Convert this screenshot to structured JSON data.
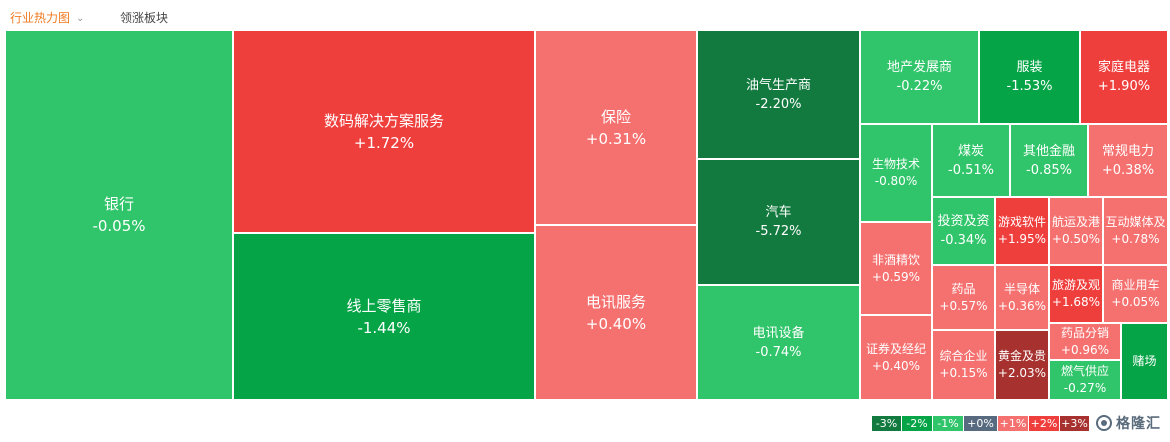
{
  "tabs": {
    "heatmap": "行业热力图",
    "leaders": "领涨板块"
  },
  "colors": {
    "up_strong": "#ef3f3d",
    "up_light": "#f57170",
    "down_light": "#30c56a",
    "down_mid": "#05a547",
    "down_strong": "#137a3f",
    "extreme_up": "#a6312e",
    "neutral": "#586a7f"
  },
  "tiles": [
    {
      "name": "银行",
      "pct": "-0.05%",
      "color": "#30c56a"
    },
    {
      "name": "数码解决方案服务",
      "pct": "+1.72%",
      "color": "#ef3f3d"
    },
    {
      "name": "线上零售商",
      "pct": "-1.44%",
      "color": "#05a547"
    },
    {
      "name": "保险",
      "pct": "+0.31%",
      "color": "#f57170"
    },
    {
      "name": "电讯服务",
      "pct": "+0.40%",
      "color": "#f57170"
    },
    {
      "name": "油气生产商",
      "pct": "-2.20%",
      "color": "#137a3f"
    },
    {
      "name": "汽车",
      "pct": "-5.72%",
      "color": "#137a3f"
    },
    {
      "name": "电讯设备",
      "pct": "-0.74%",
      "color": "#30c56a"
    },
    {
      "name": "地产发展商",
      "pct": "-0.22%",
      "color": "#30c56a"
    },
    {
      "name": "服装",
      "pct": "-1.53%",
      "color": "#05a547"
    },
    {
      "name": "家庭电器",
      "pct": "+1.90%",
      "color": "#ef3f3d"
    },
    {
      "name": "生物技术",
      "pct": "-0.80%",
      "color": "#30c56a"
    },
    {
      "name": "煤炭",
      "pct": "-0.51%",
      "color": "#30c56a"
    },
    {
      "name": "其他金融",
      "pct": "-0.85%",
      "color": "#30c56a"
    },
    {
      "name": "常规电力",
      "pct": "+0.38%",
      "color": "#f57170"
    },
    {
      "name": "非酒精饮",
      "pct": "+0.59%",
      "color": "#f57170"
    },
    {
      "name": "投资及资",
      "pct": "-0.34%",
      "color": "#30c56a"
    },
    {
      "name": "游戏软件",
      "pct": "+1.95%",
      "color": "#ef3f3d"
    },
    {
      "name": "航运及港",
      "pct": "+0.50%",
      "color": "#f57170"
    },
    {
      "name": "互动媒体及",
      "pct": "+0.78%",
      "color": "#f57170"
    },
    {
      "name": "药品",
      "pct": "+0.57%",
      "color": "#f57170"
    },
    {
      "name": "半导体",
      "pct": "+0.36%",
      "color": "#f57170"
    },
    {
      "name": "旅游及观",
      "pct": "+1.68%",
      "color": "#ef3f3d"
    },
    {
      "name": "商业用车",
      "pct": "+0.05%",
      "color": "#f57170"
    },
    {
      "name": "证券及经纪",
      "pct": "+0.40%",
      "color": "#f57170"
    },
    {
      "name": "综合企业",
      "pct": "+0.15%",
      "color": "#f57170"
    },
    {
      "name": "黄金及贵",
      "pct": "+2.03%",
      "color": "#a6312e"
    },
    {
      "name": "药品分销",
      "pct": "+0.96%",
      "color": "#f57170"
    },
    {
      "name": "燃气供应",
      "pct": "-0.27%",
      "color": "#30c56a"
    },
    {
      "name": "赌场",
      "pct": "",
      "color": "#05a547"
    }
  ],
  "legend": [
    {
      "label": "-3%",
      "color": "#137a3f"
    },
    {
      "label": "-2%",
      "color": "#05a547"
    },
    {
      "label": "-1%",
      "color": "#30c56a"
    },
    {
      "label": "+0%",
      "color": "#586a7f"
    },
    {
      "label": "+1%",
      "color": "#f57170"
    },
    {
      "label": "+2%",
      "color": "#ef3f3d"
    },
    {
      "label": "+3%",
      "color": "#a6312e"
    }
  ],
  "watermark": "格隆汇"
}
